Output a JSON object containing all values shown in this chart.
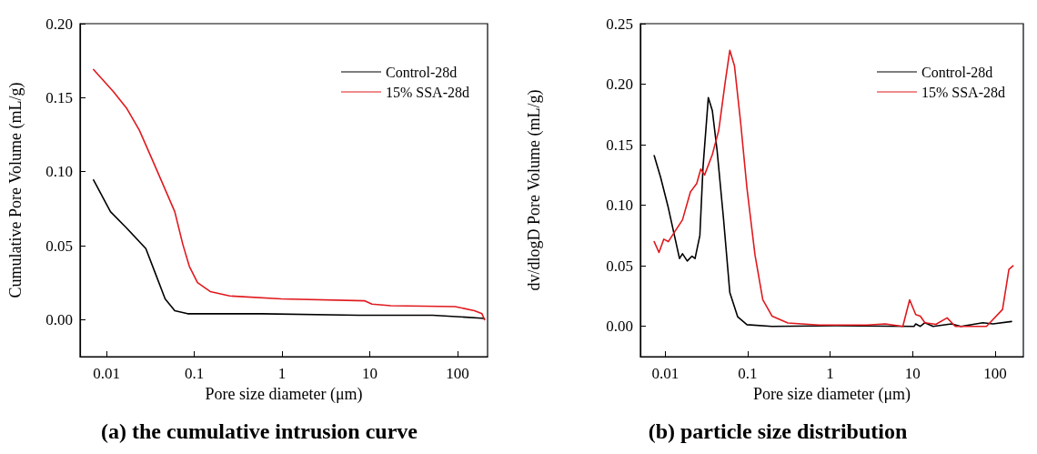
{
  "chart_data": [
    {
      "type": "line",
      "title": "(a) the cumulative intrusion curve",
      "xlabel": "Pore size diameter (μm)",
      "ylabel": "Cumulative Pore Volume (mL/g)",
      "log": "x",
      "xlim": [
        0.005,
        220
      ],
      "xticks": [
        0.01,
        0.1,
        1,
        10,
        100
      ],
      "ylim": [
        -0.025,
        0.2
      ],
      "yticks": [
        {
          "value": 0,
          "label": "0.00"
        },
        {
          "value": 0.05,
          "label": "0.05"
        },
        {
          "value": 0.1,
          "label": "0.10"
        },
        {
          "value": 0.15,
          "label": "0.15"
        },
        {
          "value": 0.2,
          "label": "0.20"
        }
      ],
      "grid": false,
      "legend": "top right",
      "marker": "none",
      "line_style": "solid",
      "series": [
        {
          "name": "Control-28d",
          "color": "#000000",
          "x": [
            0.00713,
            0.0111,
            0.0169,
            0.0281,
            0.0362,
            0.0466,
            0.06,
            0.084,
            0.59,
            7.5,
            52,
            188,
            203
          ],
          "values": [
            0.0944,
            0.073,
            0.062,
            0.048,
            0.031,
            0.014,
            0.006,
            0.004,
            0.004,
            0.003,
            0.003,
            0.001,
            0.0007
          ]
        },
        {
          "name": "15% SSA-28d",
          "color": "#e0191e",
          "x": [
            0.00713,
            0.012,
            0.0169,
            0.0237,
            0.0333,
            0.0466,
            0.06,
            0.074,
            0.088,
            0.109,
            0.152,
            0.254,
            0.98,
            8.8,
            10.6,
            17.4,
            93.9,
            156,
            190,
            203
          ],
          "values": [
            0.169,
            0.154,
            0.143,
            0.128,
            0.108,
            0.088,
            0.073,
            0.051,
            0.036,
            0.025,
            0.019,
            0.016,
            0.014,
            0.0127,
            0.0105,
            0.0094,
            0.0088,
            0.0061,
            0.004,
            0
          ]
        }
      ]
    },
    {
      "type": "line",
      "title": "(b) particle size distribution",
      "xlabel": "Pore size diameter (μm)",
      "ylabel": "dv/dlogD Pore Volume (mL/g)",
      "log": "x",
      "xlim": [
        0.005,
        220
      ],
      "xticks": [
        0.01,
        0.1,
        1,
        10,
        100
      ],
      "ylim": [
        -0.025,
        0.25
      ],
      "yticks": [
        {
          "value": 0,
          "label": "0.00"
        },
        {
          "value": 0.05,
          "label": "0.05"
        },
        {
          "value": 0.1,
          "label": "0.10"
        },
        {
          "value": 0.15,
          "label": "0.15"
        },
        {
          "value": 0.2,
          "label": "0.20"
        },
        {
          "value": 0.25,
          "label": "0.25"
        }
      ],
      "grid": false,
      "legend": "top right",
      "marker": "none",
      "line_style": "solid",
      "series": [
        {
          "name": "Control-28d",
          "color": "#000000",
          "x": [
            0.00735,
            0.0088,
            0.0109,
            0.0149,
            0.0162,
            0.0185,
            0.0211,
            0.023,
            0.0263,
            0.0287,
            0.0333,
            0.0373,
            0.0426,
            0.0509,
            0.0607,
            0.0755,
            0.098,
            0.198,
            1.15,
            10.4,
            10.9,
            12.4,
            14.1,
            17.7,
            29.6,
            38.5,
            71,
            94,
            158
          ],
          "values": [
            0.141,
            0.123,
            0.098,
            0.056,
            0.06,
            0.054,
            0.058,
            0.056,
            0.075,
            0.131,
            0.189,
            0.178,
            0.145,
            0.089,
            0.028,
            0.008,
            0.0014,
            0,
            0.0006,
            0,
            0.002,
            0,
            0.003,
            0,
            0.002,
            0,
            0.003,
            0.002,
            0.004
          ]
        },
        {
          "name": "15% SSA-28d",
          "color": "#e0191e",
          "x": [
            0.00735,
            0.0084,
            0.0096,
            0.0109,
            0.013,
            0.0162,
            0.0202,
            0.0241,
            0.027,
            0.03,
            0.0373,
            0.0446,
            0.0532,
            0.0607,
            0.0692,
            0.0825,
            0.098,
            0.1226,
            0.1524,
            0.198,
            0.307,
            0.74,
            2.77,
            4.66,
            7.6,
            9.2,
            10.9,
            12.4,
            14.1,
            19.1,
            26.2,
            32.9,
            78.5,
            123,
            147,
            165
          ],
          "values": [
            0.07,
            0.061,
            0.072,
            0.07,
            0.078,
            0.088,
            0.111,
            0.118,
            0.13,
            0.125,
            0.142,
            0.162,
            0.201,
            0.228,
            0.215,
            0.167,
            0.114,
            0.059,
            0.022,
            0.0084,
            0.0028,
            0.0011,
            0.0011,
            0.002,
            0,
            0.022,
            0.0098,
            0.0084,
            0.003,
            0.0017,
            0.007,
            0,
            0,
            0.014,
            0.047,
            0.05
          ]
        }
      ]
    }
  ]
}
